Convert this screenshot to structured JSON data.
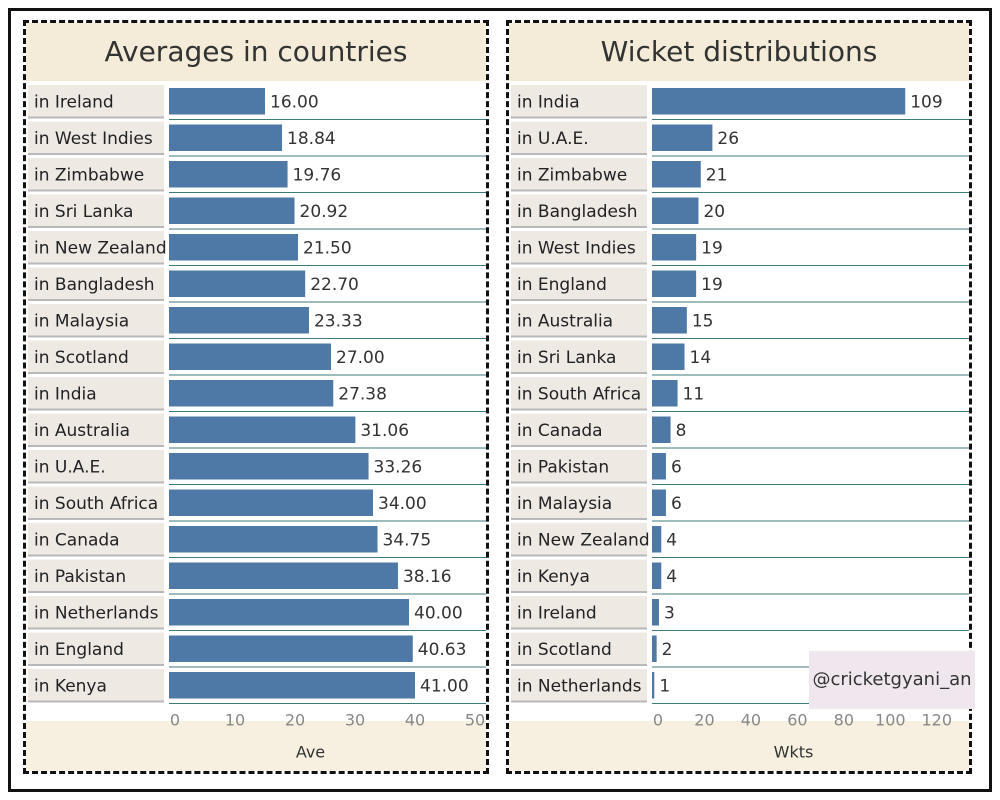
{
  "chart_data": [
    {
      "type": "bar",
      "orientation": "horizontal",
      "title": "Averages in countries",
      "xlabel": "Ave",
      "xlim": [
        0,
        50
      ],
      "ticks": [
        0,
        10,
        20,
        30,
        40,
        50
      ],
      "bar_color": "#4e79a7",
      "categories": [
        "in Ireland",
        "in West Indies",
        "in Zimbabwe",
        "in Sri Lanka",
        "in New Zealand",
        "in Bangladesh",
        "in Malaysia",
        "in Scotland",
        "in India",
        "in Australia",
        "in U.A.E.",
        "in South Africa",
        "in Canada",
        "in Pakistan",
        "in Netherlands",
        "in England",
        "in Kenya"
      ],
      "values": [
        16.0,
        18.84,
        19.76,
        20.92,
        21.5,
        22.7,
        23.33,
        27.0,
        27.38,
        31.06,
        33.26,
        34.0,
        34.75,
        38.16,
        40.0,
        40.63,
        41.0
      ],
      "value_labels": [
        "16.00",
        "18.84",
        "19.76",
        "20.92",
        "21.50",
        "22.70",
        "23.33",
        "27.00",
        "27.38",
        "31.06",
        "33.26",
        "34.00",
        "34.75",
        "38.16",
        "40.00",
        "40.63",
        "41.00"
      ]
    },
    {
      "type": "bar",
      "orientation": "horizontal",
      "title": "Wicket distributions",
      "xlabel": "Wkts",
      "xlim": [
        0,
        130
      ],
      "ticks": [
        0,
        20,
        40,
        60,
        80,
        100,
        120
      ],
      "bar_color": "#4e79a7",
      "categories": [
        "in India",
        "in U.A.E.",
        "in Zimbabwe",
        "in Bangladesh",
        "in West Indies",
        "in England",
        "in Australia",
        "in Sri Lanka",
        "in South Africa",
        "in Canada",
        "in Pakistan",
        "in Malaysia",
        "in New Zealand",
        "in Kenya",
        "in Ireland",
        "in Scotland",
        "in Netherlands"
      ],
      "values": [
        109,
        26,
        21,
        20,
        19,
        19,
        15,
        14,
        11,
        8,
        6,
        6,
        4,
        4,
        3,
        2,
        1
      ],
      "value_labels": [
        "109",
        "26",
        "21",
        "20",
        "19",
        "19",
        "15",
        "14",
        "11",
        "8",
        "6",
        "6",
        "4",
        "4",
        "3",
        "2",
        "1"
      ]
    }
  ],
  "watermark": "@cricketgyani_an"
}
